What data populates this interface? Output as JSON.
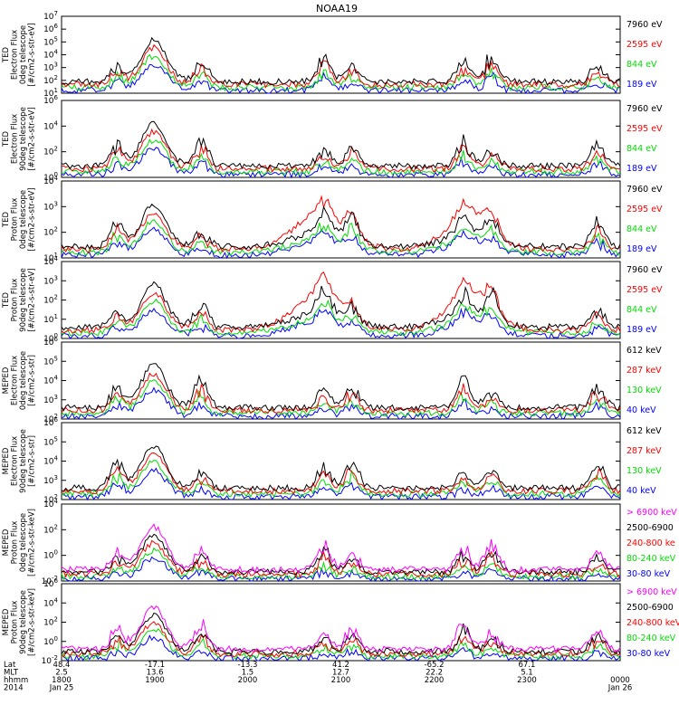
{
  "title": "NOAA19",
  "colors": {
    "blue": "#0000ff",
    "red": "#ff0000",
    "green": "#00dd00",
    "black": "#000000",
    "magenta": "#ff00ff"
  },
  "x_axis": {
    "rows": [
      {
        "label": "Lat",
        "values": [
          "48.4",
          "-17.1",
          "-13.3",
          "41.2",
          "-65.2",
          "67.1"
        ]
      },
      {
        "label": "MLT",
        "values": [
          "2.5",
          "13.6",
          "1.5",
          "12.7",
          "22.2",
          "5.1"
        ]
      },
      {
        "label": "hhmm",
        "values": [
          "1800",
          "1900",
          "2000",
          "2100",
          "2200",
          "2300",
          "0000"
        ]
      },
      {
        "label": "2014",
        "values": [
          "Jan 25",
          "Jan 26"
        ]
      }
    ]
  },
  "chart_data": [
    {
      "type": "line",
      "panel": "ted-electron-0deg",
      "ylabel": [
        "TED",
        "Electron Flux",
        "0deg telescope",
        "[#/cm2-s-str-eV]"
      ],
      "ytick_exponents": [
        1,
        2,
        3,
        4,
        5,
        6,
        7
      ],
      "ylim": [
        10,
        10000000
      ],
      "yscale": "log",
      "legend": [
        {
          "name": "7960 eV",
          "color": "black"
        },
        {
          "name": "2595 eV",
          "color": "red"
        },
        {
          "name": "844 eV",
          "color": "green"
        },
        {
          "name": "189 eV",
          "color": "blue"
        }
      ]
    },
    {
      "type": "line",
      "panel": "ted-electron-90deg",
      "ylabel": [
        "TED",
        "Electron Flux",
        "90deg telescope",
        "[#/cm2-s-str-eV]"
      ],
      "ytick_exponents": [
        0,
        2,
        4,
        6
      ],
      "ylim": [
        1,
        1000000
      ],
      "yscale": "log",
      "legend": [
        {
          "name": "7960 eV",
          "color": "black"
        },
        {
          "name": "2595 eV",
          "color": "red"
        },
        {
          "name": "844 eV",
          "color": "green"
        },
        {
          "name": "189 eV",
          "color": "blue"
        }
      ]
    },
    {
      "type": "line",
      "panel": "ted-proton-0deg",
      "ylabel": [
        "TED",
        "Proton Flux",
        "0deg telescope",
        "[#/cm2-s-str-eV]"
      ],
      "ytick_exponents": [
        1,
        2,
        3,
        4
      ],
      "ylim": [
        10,
        10000
      ],
      "yscale": "log",
      "legend": [
        {
          "name": "7960 eV",
          "color": "black"
        },
        {
          "name": "2595 eV",
          "color": "red"
        },
        {
          "name": "844 eV",
          "color": "green"
        },
        {
          "name": "189 eV",
          "color": "blue"
        }
      ]
    },
    {
      "type": "line",
      "panel": "ted-proton-90deg",
      "ylabel": [
        "TED",
        "Proton Flux",
        "90deg telescope",
        "[#/cm2-s-str-eV]"
      ],
      "ytick_exponents": [
        0,
        1,
        2,
        3,
        4
      ],
      "ylim": [
        1,
        10000
      ],
      "yscale": "log",
      "legend": [
        {
          "name": "7960 eV",
          "color": "black"
        },
        {
          "name": "2595 eV",
          "color": "red"
        },
        {
          "name": "844 eV",
          "color": "green"
        },
        {
          "name": "189 eV",
          "color": "blue"
        }
      ]
    },
    {
      "type": "line",
      "panel": "meped-electron-0deg",
      "ylabel": [
        "MEPED",
        "Electron Flux",
        "0deg telescope",
        "[#/cm2-s-str]"
      ],
      "ytick_exponents": [
        2,
        3,
        4,
        5,
        6
      ],
      "ylim": [
        100,
        1000000
      ],
      "yscale": "log",
      "legend": [
        {
          "name": "612 keV",
          "color": "black"
        },
        {
          "name": "287 keV",
          "color": "red"
        },
        {
          "name": "130 keV",
          "color": "green"
        },
        {
          "name": "40 keV",
          "color": "blue"
        }
      ]
    },
    {
      "type": "line",
      "panel": "meped-electron-90deg",
      "ylabel": [
        "MEPED",
        "Electron Flux",
        "90deg telescope",
        "[#/cm2-s-str]"
      ],
      "ytick_exponents": [
        2,
        3,
        4,
        5,
        6
      ],
      "ylim": [
        100,
        1000000
      ],
      "yscale": "log",
      "legend": [
        {
          "name": "612 keV",
          "color": "black"
        },
        {
          "name": "287 keV",
          "color": "red"
        },
        {
          "name": "130 keV",
          "color": "green"
        },
        {
          "name": "40 keV",
          "color": "blue"
        }
      ]
    },
    {
      "type": "line",
      "panel": "meped-proton-0deg",
      "ylabel": [
        "MEPED",
        "Proton Flux",
        "0deg telescope",
        "[#/cm2-s-str-keV]"
      ],
      "ytick_exponents": [
        -2,
        0,
        2,
        4
      ],
      "ylim": [
        0.01,
        100000
      ],
      "yscale": "log",
      "legend": [
        {
          "name": "> 6900 keV",
          "color": "magenta"
        },
        {
          "name": "2500-6900",
          "color": "black"
        },
        {
          "name": "240-800 ke",
          "color": "red"
        },
        {
          "name": "80-240 keV",
          "color": "green"
        },
        {
          "name": "30-80 keV",
          "color": "blue"
        }
      ]
    },
    {
      "type": "line",
      "panel": "meped-proton-90deg",
      "ylabel": [
        "MEPED",
        "Proton Flux",
        "90deg telescope",
        "[#/cm2-s-str-keV]"
      ],
      "ytick_exponents": [
        -2,
        0,
        2,
        4,
        6
      ],
      "ylim": [
        0.01,
        1000000
      ],
      "yscale": "log",
      "legend": [
        {
          "name": "> 6900 keV",
          "color": "magenta"
        },
        {
          "name": "2500-6900",
          "color": "black"
        },
        {
          "name": "240-800 keV",
          "color": "red"
        },
        {
          "name": "80-240 keV",
          "color": "green"
        },
        {
          "name": "30-80 keV",
          "color": "blue"
        }
      ]
    }
  ]
}
